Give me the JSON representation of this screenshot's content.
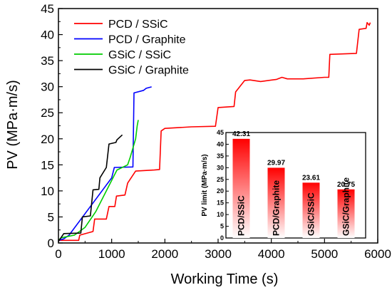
{
  "chart_data": [
    {
      "type": "line",
      "xlabel": "Working Time (s)",
      "ylabel": "PV (MPa·m/s)",
      "xlim": [
        0,
        6000
      ],
      "ylim": [
        0,
        45
      ],
      "xticks": [
        0,
        1000,
        2000,
        3000,
        4000,
        5000,
        6000
      ],
      "yticks": [
        0,
        5,
        10,
        15,
        20,
        25,
        30,
        35,
        40,
        45
      ],
      "legend_position": "top-left",
      "series": [
        {
          "name": "PCD / SSiC",
          "color": "#ff0000",
          "points": [
            [
              0,
              0.5
            ],
            [
              380,
              0.5
            ],
            [
              400,
              1.5
            ],
            [
              650,
              2.2
            ],
            [
              680,
              4.6
            ],
            [
              900,
              4.6
            ],
            [
              950,
              7.0
            ],
            [
              1060,
              7.0
            ],
            [
              1090,
              9.0
            ],
            [
              1250,
              9.2
            ],
            [
              1300,
              11.5
            ],
            [
              1450,
              13.8
            ],
            [
              1800,
              14.0
            ],
            [
              1900,
              14.1
            ],
            [
              1930,
              21.5
            ],
            [
              2000,
              22.0
            ],
            [
              2500,
              22.3
            ],
            [
              2950,
              22.4
            ],
            [
              3000,
              26.0
            ],
            [
              3300,
              26.2
            ],
            [
              3330,
              29.0
            ],
            [
              3500,
              31.2
            ],
            [
              3600,
              31.3
            ],
            [
              3800,
              31.0
            ],
            [
              4100,
              31.4
            ],
            [
              4200,
              31.8
            ],
            [
              4300,
              31.5
            ],
            [
              4600,
              31.5
            ],
            [
              5000,
              31.8
            ],
            [
              5080,
              31.8
            ],
            [
              5100,
              36.2
            ],
            [
              5600,
              36.4
            ],
            [
              5650,
              41.0
            ],
            [
              5780,
              41.2
            ],
            [
              5800,
              42.3
            ],
            [
              5840,
              41.8
            ],
            [
              5860,
              42.3
            ]
          ]
        },
        {
          "name": "PCD / Graphite",
          "color": "#0000ff",
          "points": [
            [
              0,
              0.5
            ],
            [
              100,
              0.8
            ],
            [
              200,
              1.5
            ],
            [
              1000,
              12.5
            ],
            [
              1050,
              14.5
            ],
            [
              1400,
              14.6
            ],
            [
              1420,
              28.8
            ],
            [
              1600,
              29.3
            ],
            [
              1650,
              29.7
            ],
            [
              1750,
              29.97
            ]
          ]
        },
        {
          "name": "GSiC / SSiC",
          "color": "#00cc00",
          "points": [
            [
              0,
              0.5
            ],
            [
              50,
              1.0
            ],
            [
              300,
              1.5
            ],
            [
              500,
              3.0
            ],
            [
              700,
              6.0
            ],
            [
              900,
              10.0
            ],
            [
              1100,
              14.0
            ],
            [
              1300,
              15.0
            ],
            [
              1350,
              16.5
            ],
            [
              1450,
              20.0
            ],
            [
              1480,
              22.5
            ],
            [
              1500,
              23.61
            ]
          ]
        },
        {
          "name": "GSiC / Graphite",
          "color": "#000000",
          "points": [
            [
              0,
              0.3
            ],
            [
              100,
              1.8
            ],
            [
              420,
              1.9
            ],
            [
              450,
              5.0
            ],
            [
              600,
              5.2
            ],
            [
              650,
              10.2
            ],
            [
              760,
              10.3
            ],
            [
              780,
              12.5
            ],
            [
              900,
              14.5
            ],
            [
              950,
              19.0
            ],
            [
              1080,
              19.3
            ],
            [
              1100,
              19.8
            ],
            [
              1200,
              20.75
            ]
          ]
        }
      ]
    },
    {
      "type": "bar",
      "ylabel": "PV limit (MPa·m/s)",
      "ylim": [
        0,
        45
      ],
      "yticks": [
        0,
        5,
        10,
        15,
        20,
        25,
        30,
        35,
        40,
        45
      ],
      "categories": [
        "PCD/SSiC",
        "PCD/Graphite",
        "GSiC/SSiC",
        "GSiC/Graphite"
      ],
      "values": [
        42.31,
        29.97,
        23.61,
        20.75
      ],
      "value_labels": [
        "42.31",
        "29.97",
        "23.61",
        "20.75"
      ],
      "bar_color": "#ff0000"
    }
  ]
}
